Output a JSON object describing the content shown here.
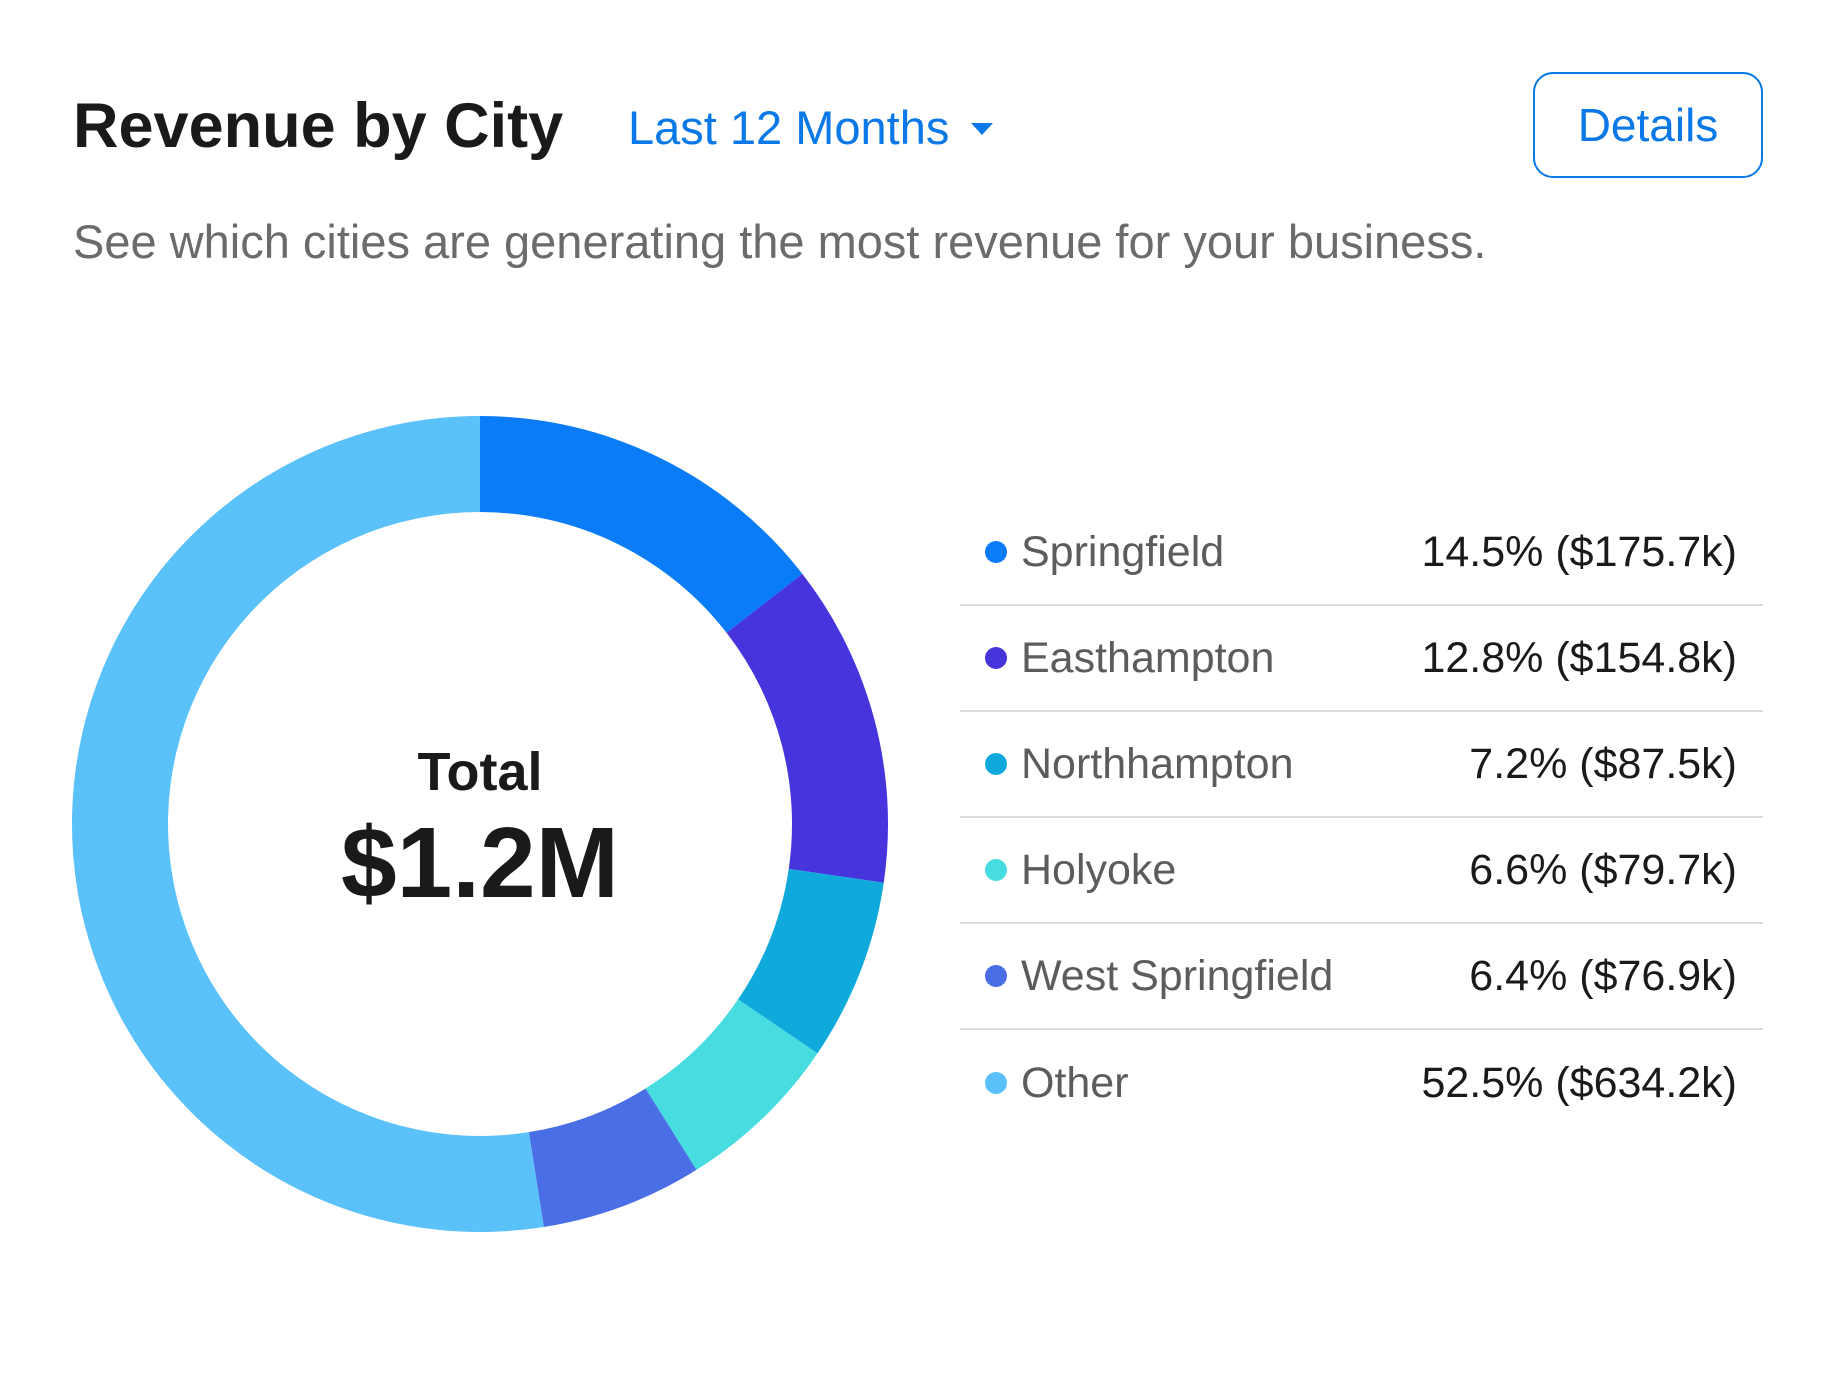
{
  "header": {
    "title": "Revenue by City",
    "range_label": "Last 12 Months",
    "details_label": "Details",
    "subtitle": "See which cities are generating the most revenue for your business."
  },
  "center": {
    "label": "Total",
    "value": "$1.2M"
  },
  "legend": [
    {
      "name": "Springfield",
      "value_text": "14.5% ($175.7k)"
    },
    {
      "name": "Easthampton",
      "value_text": "12.8% ($154.8k)"
    },
    {
      "name": "Northhampton",
      "value_text": "7.2% ($87.5k)"
    },
    {
      "name": "Holyoke",
      "value_text": "6.6% ($79.7k)"
    },
    {
      "name": "West Springfield",
      "value_text": "6.4% ($76.9k)"
    },
    {
      "name": "Other",
      "value_text": "52.5% ($634.2k)"
    }
  ],
  "colors": {
    "accent": "#0a78e6"
  },
  "chart_data": {
    "type": "pie",
    "categories": [
      "Springfield",
      "Easthampton",
      "Northhampton",
      "Holyoke",
      "West Springfield",
      "Other"
    ],
    "values": [
      14.5,
      12.8,
      7.2,
      6.6,
      6.4,
      52.5
    ],
    "amounts": [
      175.7,
      154.8,
      87.5,
      79.7,
      76.9,
      634.2
    ],
    "colors": [
      "#0a7cf8",
      "#4634dc",
      "#0fa9dc",
      "#47dce0",
      "#4a6ee6",
      "#5bc1fa"
    ],
    "donut": true,
    "start": "top",
    "direction": "clockwise",
    "legend_position": "right"
  }
}
